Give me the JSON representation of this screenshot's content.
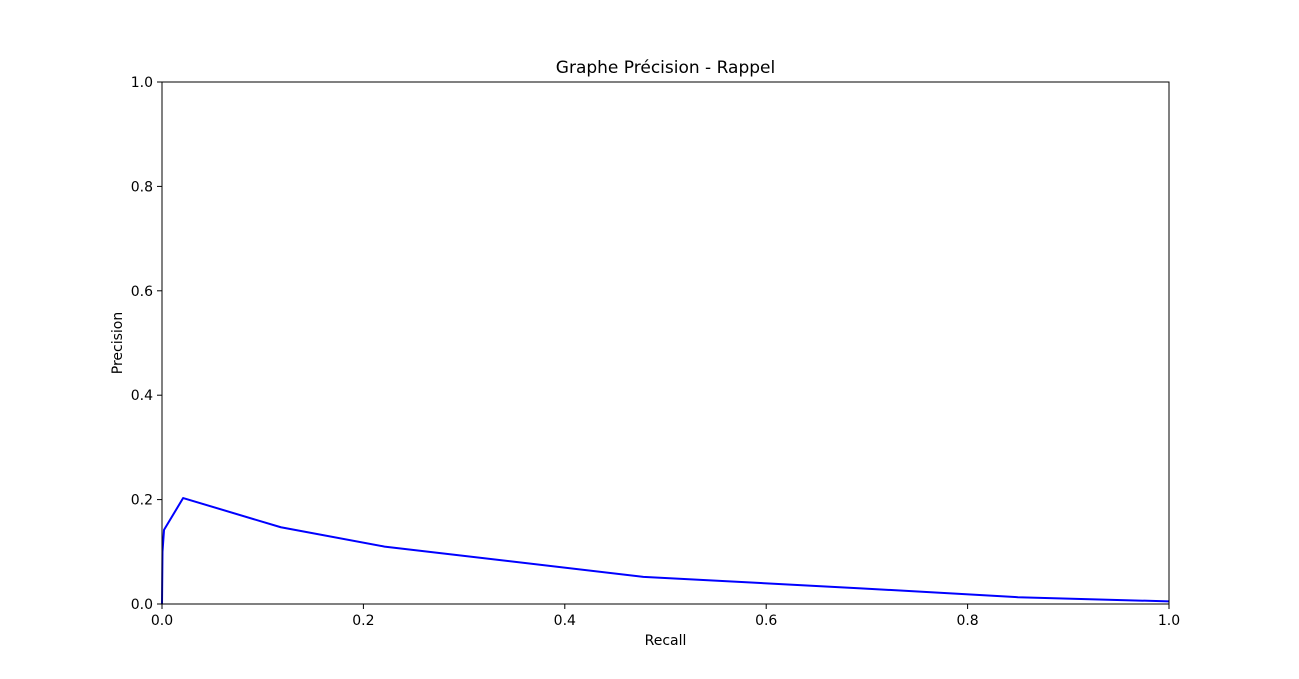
{
  "chart_data": {
    "type": "line",
    "title": "Graphe Précision - Rappel",
    "xlabel": "Recall",
    "ylabel": "Precision",
    "xlim": [
      0.0,
      1.0
    ],
    "ylim": [
      0.0,
      1.0
    ],
    "grid": false,
    "x_ticks": [
      "0.0",
      "0.2",
      "0.4",
      "0.6",
      "0.8",
      "1.0"
    ],
    "y_ticks": [
      "0.0",
      "0.2",
      "0.4",
      "0.6",
      "0.8",
      "1.0"
    ],
    "series": [
      {
        "color": "#0000ff",
        "x": [
          0.0,
          0.0005,
          0.002,
          0.021,
          0.118,
          0.221,
          0.478,
          0.694,
          0.85,
          1.0
        ],
        "y": [
          0.0,
          0.1,
          0.142,
          0.203,
          0.147,
          0.11,
          0.052,
          0.03,
          0.013,
          0.005
        ]
      }
    ]
  }
}
